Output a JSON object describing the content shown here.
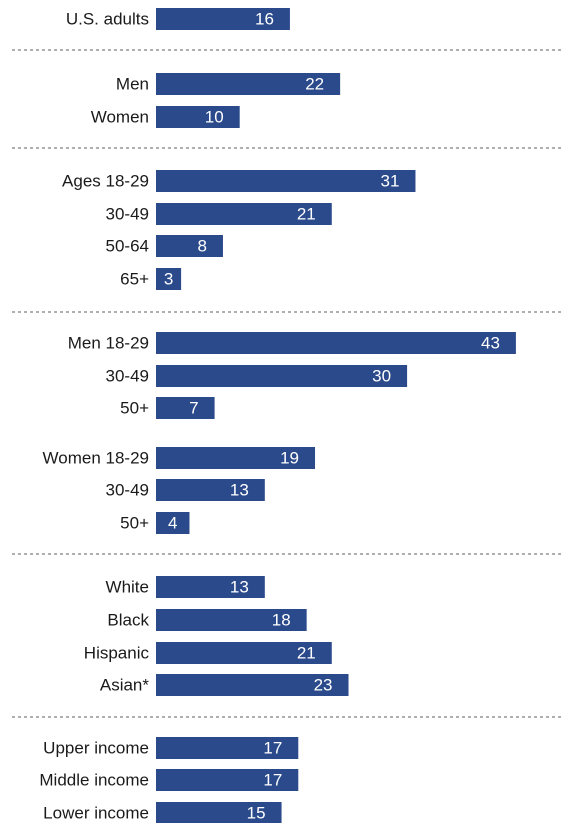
{
  "chart_data": {
    "type": "bar",
    "orientation": "horizontal",
    "bar_color": "#2b4a8b",
    "label_color": "#ffffff",
    "xlim": [
      0,
      43
    ],
    "grid": false,
    "legend": "none",
    "categories": [
      "U.S. adults",
      "Men",
      "Women",
      "Ages 18-29",
      "30-49",
      "50-64",
      "65+",
      "Men 18-29",
      "30-49",
      "50+",
      "Women 18-29",
      "30-49",
      "50+",
      "White",
      "Black",
      "Hispanic",
      "Asian*",
      "Upper income",
      "Middle income",
      "Lower income"
    ],
    "values": [
      16,
      22,
      10,
      31,
      21,
      8,
      3,
      43,
      30,
      7,
      19,
      13,
      4,
      13,
      18,
      21,
      23,
      17,
      17,
      15
    ]
  }
}
